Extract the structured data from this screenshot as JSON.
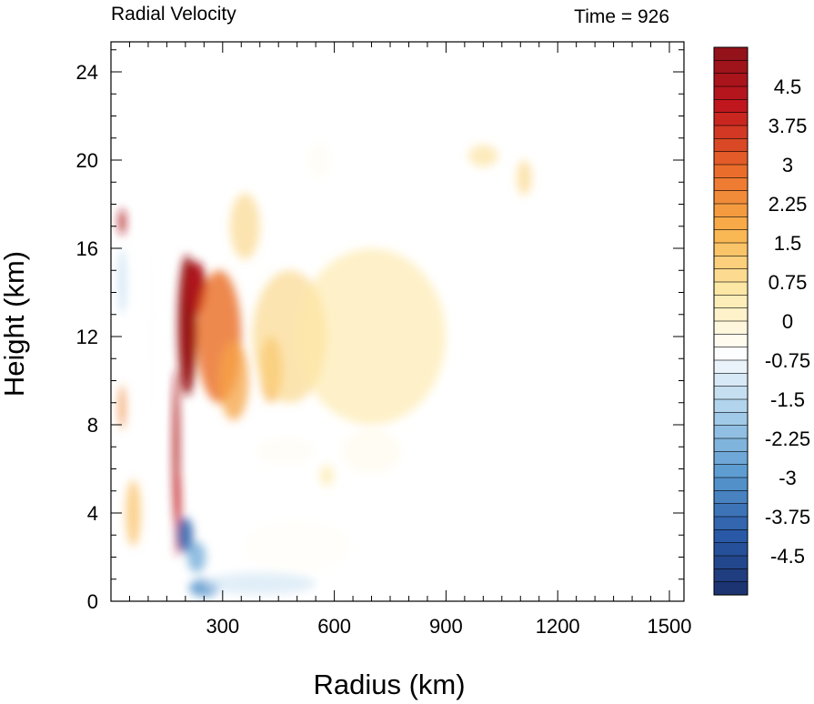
{
  "chart_data": {
    "type": "heatmap",
    "title_left": "Radial Velocity",
    "title_right": "Time = 926",
    "xlabel": "Radius (km)",
    "ylabel": "Height (km)",
    "xlim": [
      0,
      1500
    ],
    "ylim": [
      0,
      25
    ],
    "x_ticks": [
      300,
      600,
      900,
      1200,
      1500
    ],
    "y_ticks": [
      0,
      4,
      8,
      12,
      16,
      20,
      24
    ],
    "colorbar": {
      "min": -5.25,
      "max": 5.25,
      "step": 0.25,
      "labels": [
        "4.5",
        "3.75",
        "3",
        "2.25",
        "1.5",
        "0.75",
        "0",
        "-0.75",
        "-1.5",
        "-2.25",
        "-3",
        "-3.75",
        "-4.5"
      ],
      "label_values": [
        4.5,
        3.75,
        3,
        2.25,
        1.5,
        0.75,
        0,
        -0.75,
        -1.5,
        -2.25,
        -3,
        -3.75,
        -4.5
      ],
      "palette": [
        "#1a2f6b",
        "#2a5ba8",
        "#5b9bd1",
        "#a9d0eb",
        "#ffffff",
        "#fde9a8",
        "#f8b24a",
        "#ea6a2a",
        "#c2171e",
        "#8e1118"
      ]
    },
    "features": [
      {
        "r": 205,
        "z": 12.5,
        "sr": 25,
        "sz": 3.2,
        "v": 5.0
      },
      {
        "r": 230,
        "z": 14.2,
        "sr": 25,
        "sz": 1.2,
        "v": 4.5
      },
      {
        "r": 175,
        "z": 7.0,
        "sr": 8,
        "sz": 3.5,
        "v": 4.5
      },
      {
        "r": 180,
        "z": 4.0,
        "sr": 7,
        "sz": 2.0,
        "v": 4.0
      },
      {
        "r": 290,
        "z": 12.0,
        "sr": 60,
        "sz": 3.0,
        "v": 2.8
      },
      {
        "r": 330,
        "z": 10.0,
        "sr": 40,
        "sz": 1.8,
        "v": 2.0
      },
      {
        "r": 430,
        "z": 10.5,
        "sr": 30,
        "sz": 1.5,
        "v": 1.8
      },
      {
        "r": 480,
        "z": 12.0,
        "sr": 100,
        "sz": 3.0,
        "v": 1.0
      },
      {
        "r": 700,
        "z": 12.0,
        "sr": 200,
        "sz": 4.0,
        "v": 0.6
      },
      {
        "r": 360,
        "z": 17.0,
        "sr": 40,
        "sz": 1.5,
        "v": 1.0
      },
      {
        "r": 1000,
        "z": 20.2,
        "sr": 40,
        "sz": 0.5,
        "v": 0.8
      },
      {
        "r": 1110,
        "z": 19.2,
        "sr": 20,
        "sz": 0.8,
        "v": 1.0
      },
      {
        "r": 580,
        "z": 5.7,
        "sr": 20,
        "sz": 0.5,
        "v": 0.6
      },
      {
        "r": 30,
        "z": 17.2,
        "sr": 8,
        "sz": 0.6,
        "v": 4.5
      },
      {
        "r": 30,
        "z": 8.8,
        "sr": 8,
        "sz": 1.0,
        "v": 2.5
      },
      {
        "r": 60,
        "z": 4.0,
        "sr": 20,
        "sz": 1.5,
        "v": 1.5
      },
      {
        "r": 30,
        "z": 14.5,
        "sr": 10,
        "sz": 1.5,
        "v": -1.5
      },
      {
        "r": 110,
        "z": 12.0,
        "sr": 15,
        "sz": 6.0,
        "v": -0.6
      },
      {
        "r": 200,
        "z": 3.0,
        "sr": 20,
        "sz": 0.8,
        "v": -3.8
      },
      {
        "r": 230,
        "z": 2.0,
        "sr": 25,
        "sz": 0.7,
        "v": -2.5
      },
      {
        "r": 250,
        "z": 0.6,
        "sr": 40,
        "sz": 0.4,
        "v": -3.0
      },
      {
        "r": 400,
        "z": 0.8,
        "sr": 150,
        "sz": 0.5,
        "v": -1.2
      },
      {
        "r": 500,
        "z": 2.5,
        "sr": 150,
        "sz": 1.2,
        "v": -0.5
      },
      {
        "r": 470,
        "z": 6.8,
        "sr": 80,
        "sz": 0.6,
        "v": -0.4
      },
      {
        "r": 560,
        "z": 20.0,
        "sr": 30,
        "sz": 0.8,
        "v": -0.4
      },
      {
        "r": 700,
        "z": 6.8,
        "sr": 80,
        "sz": 1.0,
        "v": -0.3
      }
    ]
  }
}
